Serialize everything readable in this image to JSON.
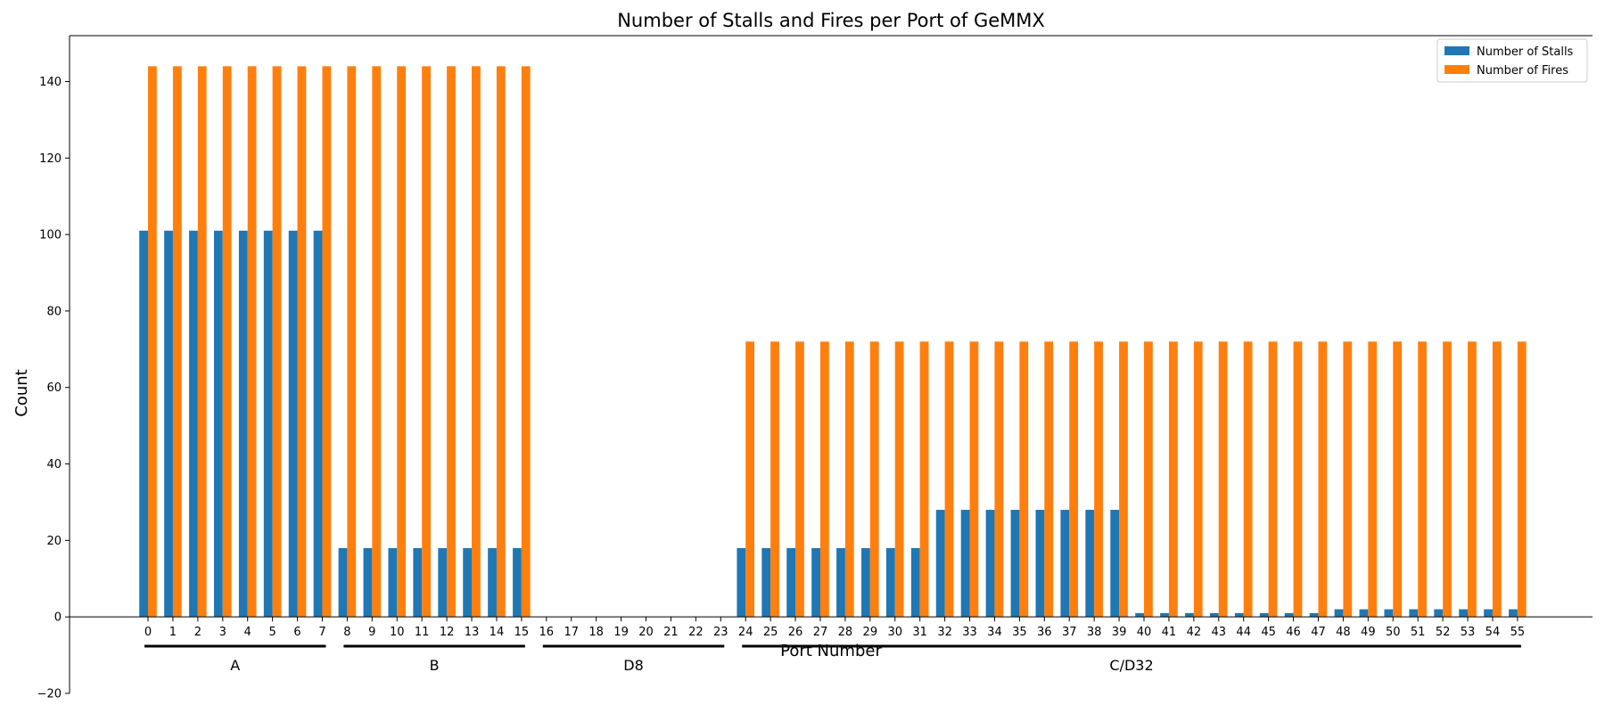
{
  "chart_data": {
    "type": "bar",
    "title": "Number of Stalls and Fires per Port of GeMMX",
    "xlabel": "Port Number",
    "ylabel": "Count",
    "ylim": [
      -20,
      152
    ],
    "yticks": [
      -20,
      0,
      20,
      40,
      60,
      80,
      100,
      120,
      140
    ],
    "categories": [
      "0",
      "1",
      "2",
      "3",
      "4",
      "5",
      "6",
      "7",
      "8",
      "9",
      "10",
      "11",
      "12",
      "13",
      "14",
      "15",
      "16",
      "17",
      "18",
      "19",
      "20",
      "21",
      "22",
      "23",
      "24",
      "25",
      "26",
      "27",
      "28",
      "29",
      "30",
      "31",
      "32",
      "33",
      "34",
      "35",
      "36",
      "37",
      "38",
      "39",
      "40",
      "41",
      "42",
      "43",
      "44",
      "45",
      "46",
      "47",
      "48",
      "49",
      "50",
      "51",
      "52",
      "53",
      "54",
      "55"
    ],
    "series": [
      {
        "name": "Number of Stalls",
        "color": "#1f77b4",
        "values": [
          101,
          101,
          101,
          101,
          101,
          101,
          101,
          101,
          18,
          18,
          18,
          18,
          18,
          18,
          18,
          18,
          0,
          0,
          0,
          0,
          0,
          0,
          0,
          0,
          18,
          18,
          18,
          18,
          18,
          18,
          18,
          18,
          28,
          28,
          28,
          28,
          28,
          28,
          28,
          28,
          1,
          1,
          1,
          1,
          1,
          1,
          1,
          1,
          2,
          2,
          2,
          2,
          2,
          2,
          2,
          2
        ]
      },
      {
        "name": "Number of Fires",
        "color": "#ff7f0e",
        "values": [
          144,
          144,
          144,
          144,
          144,
          144,
          144,
          144,
          144,
          144,
          144,
          144,
          144,
          144,
          144,
          144,
          0,
          0,
          0,
          0,
          0,
          0,
          0,
          0,
          72,
          72,
          72,
          72,
          72,
          72,
          72,
          72,
          72,
          72,
          72,
          72,
          72,
          72,
          72,
          72,
          72,
          72,
          72,
          72,
          72,
          72,
          72,
          72,
          72,
          72,
          72,
          72,
          72,
          72,
          72,
          72
        ]
      }
    ],
    "groups": [
      {
        "label": "A",
        "start": 0,
        "end": 7
      },
      {
        "label": "B",
        "start": 8,
        "end": 15
      },
      {
        "label": "D8",
        "start": 16,
        "end": 23
      },
      {
        "label": "C/D32",
        "start": 24,
        "end": 55
      }
    ],
    "legend_position": "top-right",
    "grid": false
  }
}
